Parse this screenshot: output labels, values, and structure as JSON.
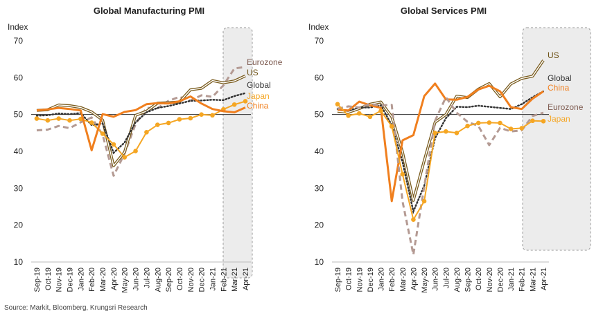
{
  "source": "Source: Markit, Bloomberg, Krungsri Research",
  "chart_data": [
    {
      "type": "line",
      "title": "Global Manufacturing PMI",
      "ylabel": "Index",
      "ylim": [
        10,
        70
      ],
      "yticks": [
        "10",
        "20",
        "30",
        "40",
        "50",
        "60",
        "70"
      ],
      "categories": [
        "Sep-19",
        "Oct-19",
        "Nov-19",
        "Dec-19",
        "Jan-20",
        "Feb-20",
        "Mar-20",
        "Apr-20",
        "May-20",
        "Jun-20",
        "Jul-20",
        "Aug-20",
        "Sep-20",
        "Oct-20",
        "Nov-20",
        "Dec-20",
        "Jan-21",
        "Feb-21",
        "Mar-21",
        "Apr-21"
      ],
      "forecast_from": "Feb-21",
      "series": [
        {
          "name": "Eurozone",
          "color": "#b49a93",
          "style": "dashed",
          "values": [
            45.7,
            45.9,
            46.9,
            46.3,
            47.9,
            49.2,
            44.5,
            33.4,
            39.4,
            47.4,
            51.8,
            51.7,
            53.7,
            54.8,
            53.8,
            55.2,
            54.8,
            57.9,
            62.5,
            62.9
          ]
        },
        {
          "name": "US",
          "color": "#7a5c1e",
          "style": "double",
          "values": [
            51.1,
            51.3,
            52.6,
            52.4,
            51.9,
            50.7,
            48.5,
            36.1,
            39.8,
            49.8,
            50.9,
            53.1,
            53.2,
            53.4,
            56.7,
            57.1,
            59.2,
            58.6,
            59.1,
            60.5
          ]
        },
        {
          "name": "Global",
          "color": "#333333",
          "style": "dotted",
          "values": [
            49.7,
            49.8,
            50.3,
            50.1,
            50.4,
            47.1,
            47.6,
            39.6,
            42.4,
            47.9,
            50.6,
            51.8,
            52.3,
            53.0,
            53.7,
            53.8,
            54.0,
            53.9,
            55.0,
            55.8
          ]
        },
        {
          "name": "Japan",
          "color": "#f5a623",
          "style": "marker",
          "values": [
            48.9,
            48.4,
            48.9,
            48.4,
            48.8,
            47.8,
            44.8,
            41.9,
            38.4,
            40.1,
            45.2,
            47.2,
            47.7,
            48.7,
            49.0,
            50.0,
            49.8,
            51.4,
            52.7,
            53.6
          ]
        },
        {
          "name": "China",
          "color": "#f07f1e",
          "style": "solid",
          "values": [
            51.1,
            51.4,
            51.8,
            51.5,
            51.1,
            40.3,
            50.1,
            49.4,
            50.7,
            51.2,
            52.8,
            53.1,
            53.0,
            53.6,
            54.9,
            53.0,
            51.5,
            50.9,
            50.6,
            51.9
          ]
        }
      ]
    },
    {
      "type": "line",
      "title": "Global Services PMI",
      "ylabel": "Index",
      "ylim": [
        10,
        70
      ],
      "yticks": [
        "10",
        "20",
        "30",
        "40",
        "50",
        "60",
        "70"
      ],
      "categories": [
        "Sep-19",
        "Oct-19",
        "Nov-19",
        "Dec-19",
        "Jan-20",
        "Feb-20",
        "Mar-20",
        "Apr-20",
        "May-20",
        "Jun-20",
        "Jul-20",
        "Aug-20",
        "Sep-20",
        "Oct-20",
        "Nov-20",
        "Dec-20",
        "Jan-21",
        "Feb-21",
        "Mar-21",
        "Apr-21"
      ],
      "forecast_from": "Feb-21",
      "series": [
        {
          "name": "US",
          "color": "#7a5c1e",
          "style": "double",
          "values": [
            50.9,
            50.6,
            51.6,
            52.8,
            53.4,
            49.4,
            39.8,
            26.7,
            37.5,
            47.9,
            50.0,
            55.0,
            54.6,
            56.9,
            58.4,
            54.8,
            58.3,
            59.8,
            60.4,
            64.7
          ]
        },
        {
          "name": "Global",
          "color": "#333333",
          "style": "dotted",
          "values": [
            51.5,
            51.0,
            51.9,
            51.9,
            52.5,
            47.1,
            37.1,
            23.7,
            30.7,
            43.6,
            49.0,
            52.1,
            52.0,
            52.4,
            52.1,
            51.8,
            51.5,
            52.8,
            54.7,
            56.3
          ]
        },
        {
          "name": "China",
          "color": "#f07f1e",
          "style": "solid",
          "values": [
            51.3,
            51.1,
            53.5,
            52.5,
            51.8,
            26.5,
            43.0,
            44.4,
            55.0,
            58.4,
            54.1,
            54.0,
            54.8,
            56.8,
            57.8,
            56.3,
            52.0,
            51.5,
            54.3,
            56.3
          ]
        },
        {
          "name": "Eurozone",
          "color": "#b49a93",
          "style": "dashed",
          "values": [
            51.6,
            52.2,
            51.9,
            52.8,
            52.5,
            52.6,
            26.4,
            12.0,
            30.5,
            48.3,
            54.7,
            50.5,
            48.0,
            46.9,
            41.7,
            46.4,
            45.4,
            45.7,
            49.6,
            50.5
          ]
        },
        {
          "name": "Japan",
          "color": "#f5a623",
          "style": "marker",
          "values": [
            52.8,
            49.7,
            50.3,
            49.4,
            51.0,
            46.8,
            33.8,
            21.5,
            26.5,
            45.0,
            45.4,
            45.0,
            46.9,
            47.7,
            47.8,
            47.7,
            46.1,
            46.3,
            48.3,
            48.2
          ]
        }
      ]
    }
  ]
}
